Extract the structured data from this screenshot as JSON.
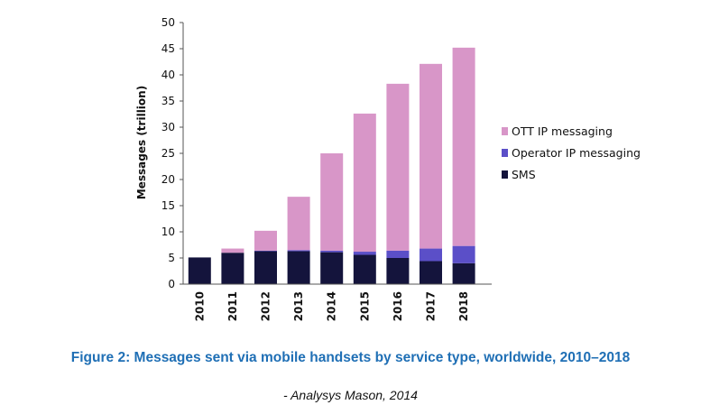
{
  "chart_data": {
    "type": "bar",
    "stacked": true,
    "categories": [
      "2010",
      "2011",
      "2012",
      "2013",
      "2014",
      "2015",
      "2016",
      "2017",
      "2018"
    ],
    "series": [
      {
        "name": "SMS",
        "color": "#14143c",
        "values": [
          5.1,
          6.0,
          6.3,
          6.3,
          6.1,
          5.6,
          5.0,
          4.4,
          4.0
        ]
      },
      {
        "name": "Operator IP messaging",
        "color": "#5b4fc8",
        "values": [
          0.0,
          0.0,
          0.1,
          0.2,
          0.3,
          0.6,
          1.4,
          2.4,
          3.3
        ]
      },
      {
        "name": "OTT IP messaging",
        "color": "#d896c8",
        "values": [
          0.0,
          0.8,
          3.8,
          10.2,
          18.6,
          26.4,
          31.9,
          35.3,
          37.9
        ]
      }
    ],
    "legend_order": [
      "OTT IP messaging",
      "Operator IP messaging",
      "SMS"
    ],
    "legend_position": "right",
    "ylabel": "Messages (trillion)",
    "xlabel": "",
    "ylim": [
      0,
      50
    ],
    "yticks": [
      0,
      5,
      10,
      15,
      20,
      25,
      30,
      35,
      40,
      45,
      50
    ],
    "grid": false
  },
  "caption": "Figure 2: Messages sent via mobile handsets by service type, worldwide, 2010–2018",
  "caption_color": "#1f6fb5",
  "source": "- Analysys Mason, 2014"
}
